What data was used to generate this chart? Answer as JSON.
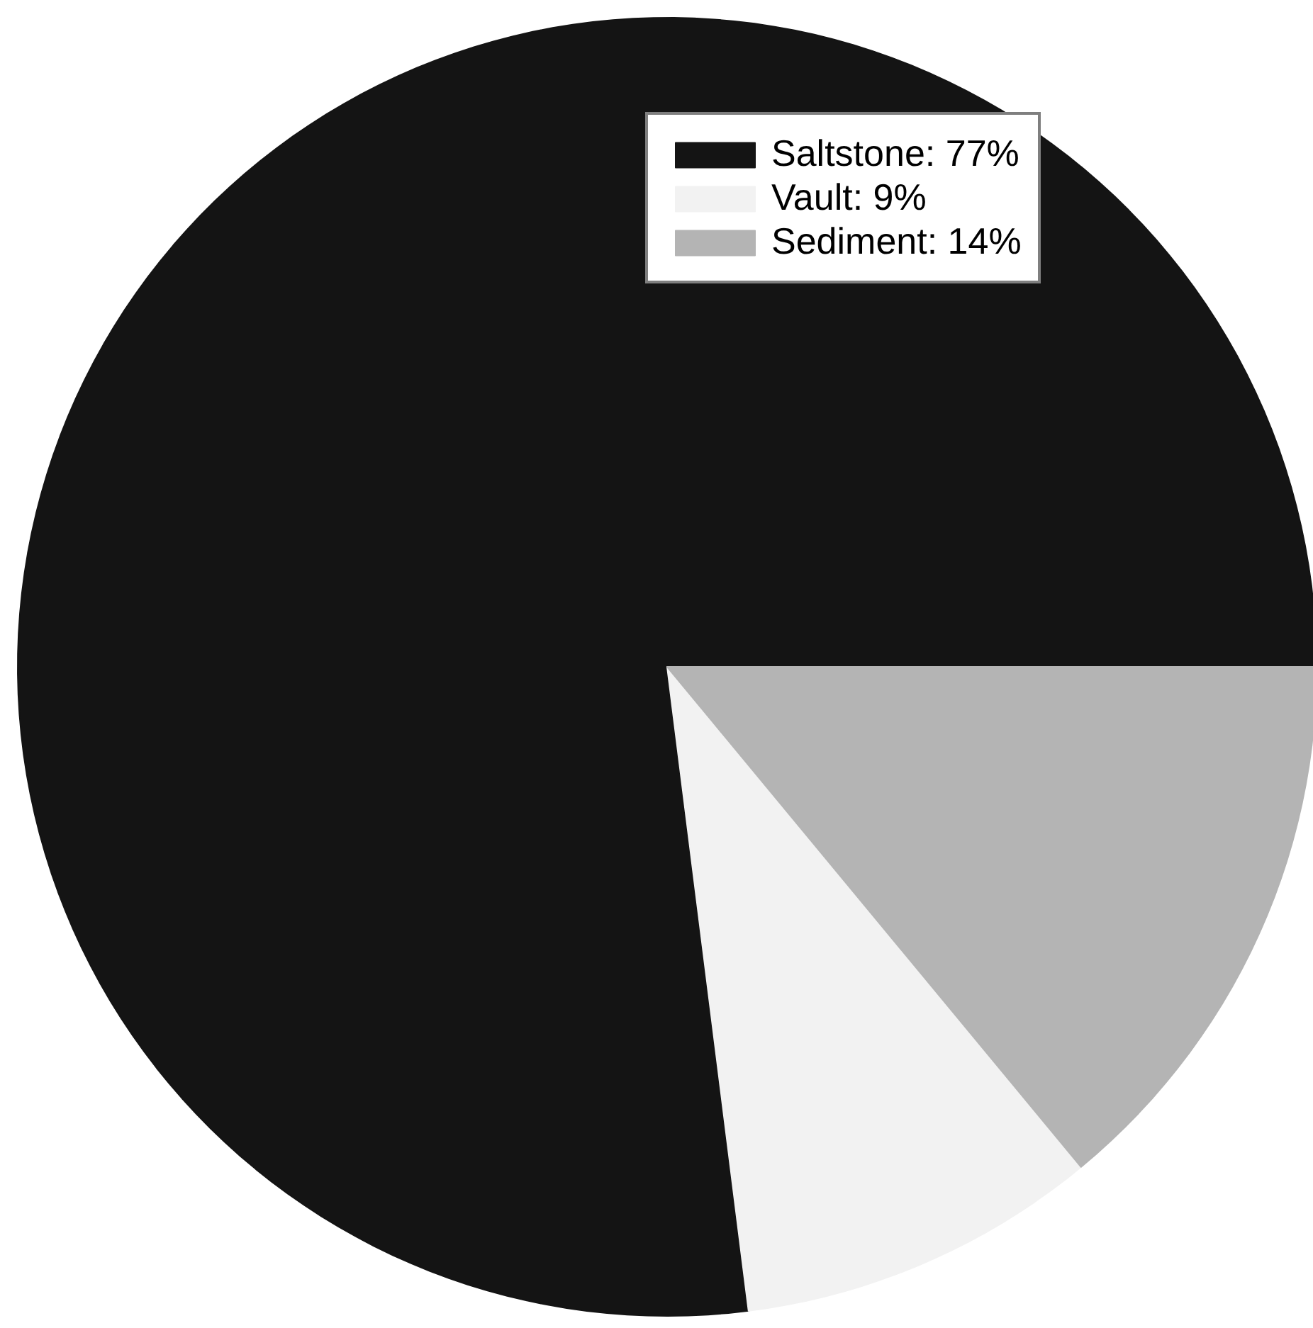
{
  "chart_data": {
    "type": "pie",
    "categories": [
      "Saltstone: 77%",
      "Vault: 9%",
      "Sediment: 14%"
    ],
    "values": [
      77,
      9,
      14
    ],
    "colors": [
      "#141414",
      "#f2f2f2",
      "#b4b4b4"
    ],
    "legend": "top right"
  }
}
